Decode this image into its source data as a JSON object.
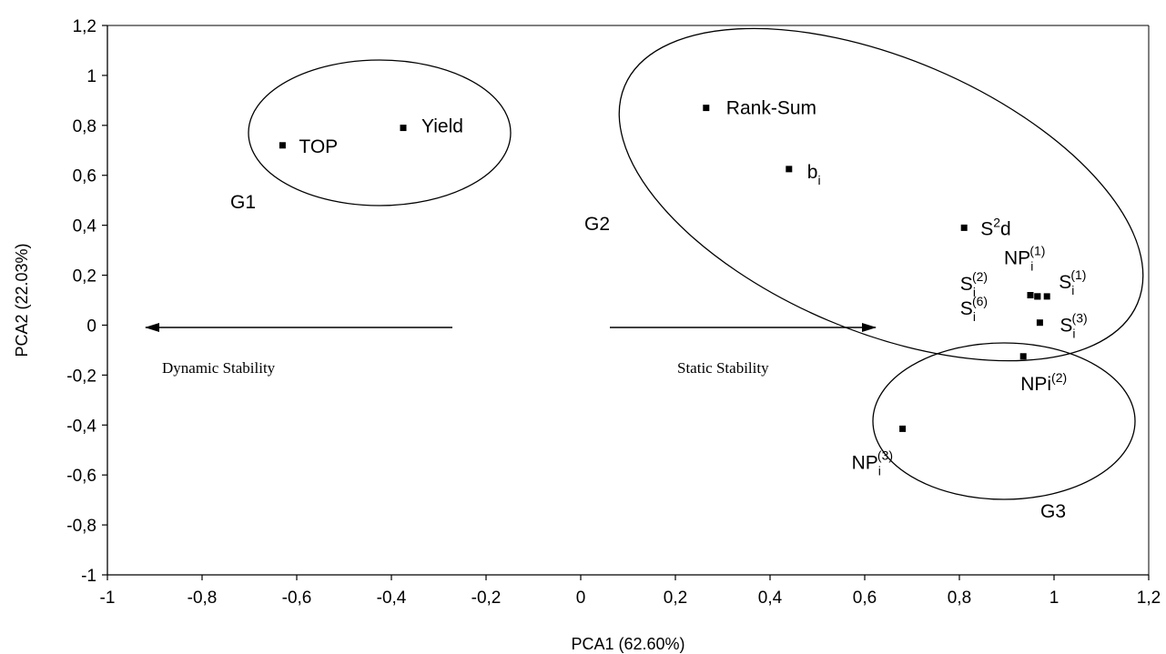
{
  "chart_data": {
    "type": "scatter",
    "xlabel": "PCA1 (62.60%)",
    "ylabel": "PCA2 (22.03%)",
    "xlim": [
      -1,
      1.2
    ],
    "ylim": [
      -1,
      1.2
    ],
    "x_ticks": [
      "-1",
      "-0,8",
      "-0,6",
      "-0,4",
      "-0,2",
      "0",
      "0,2",
      "0,4",
      "0,6",
      "0,8",
      "1",
      "1,2"
    ],
    "y_ticks": [
      "1,2",
      "1",
      "0,8",
      "0,6",
      "0,4",
      "0,2",
      "0",
      "-0,2",
      "-0,4",
      "-0,6",
      "-0,8",
      "-1"
    ],
    "grid": false,
    "legend": "none",
    "marker_color": "#000000",
    "points": [
      {
        "label": "TOP",
        "x": -0.63,
        "y": 0.72
      },
      {
        "label": "Yield",
        "x": -0.375,
        "y": 0.79
      },
      {
        "label": "Rank-Sum",
        "x": 0.265,
        "y": 0.87
      },
      {
        "label": "b",
        "sub": "i",
        "x": 0.44,
        "y": 0.625
      },
      {
        "label": "S",
        "sup": "2",
        "tail": "d",
        "x": 0.81,
        "y": 0.39
      },
      {
        "label": "NP",
        "sub": "i",
        "sup": "(1)",
        "x": 0.95,
        "y": 0.12
      },
      {
        "label": "S",
        "sub": "i",
        "sup": "(2)",
        "x": 0.965,
        "y": 0.115
      },
      {
        "label": "S",
        "sub": "i",
        "sup": "(1)",
        "x": 0.985,
        "y": 0.115
      },
      {
        "label": "S",
        "sub": "i",
        "sup": "(6)",
        "x": 0.965,
        "y": 0.115
      },
      {
        "label": "S",
        "sub": "i",
        "sup": "(3)",
        "x": 0.97,
        "y": 0.01
      },
      {
        "label": "NPi",
        "sup": "(2)",
        "x": 0.935,
        "y": -0.125
      },
      {
        "label": "NP",
        "sub": "i",
        "sup": "(3)",
        "x": 0.68,
        "y": -0.415
      }
    ],
    "groups": [
      "G1",
      "G2",
      "G3"
    ],
    "annotations": [
      "Dynamic Stability",
      "Static Stability"
    ]
  }
}
